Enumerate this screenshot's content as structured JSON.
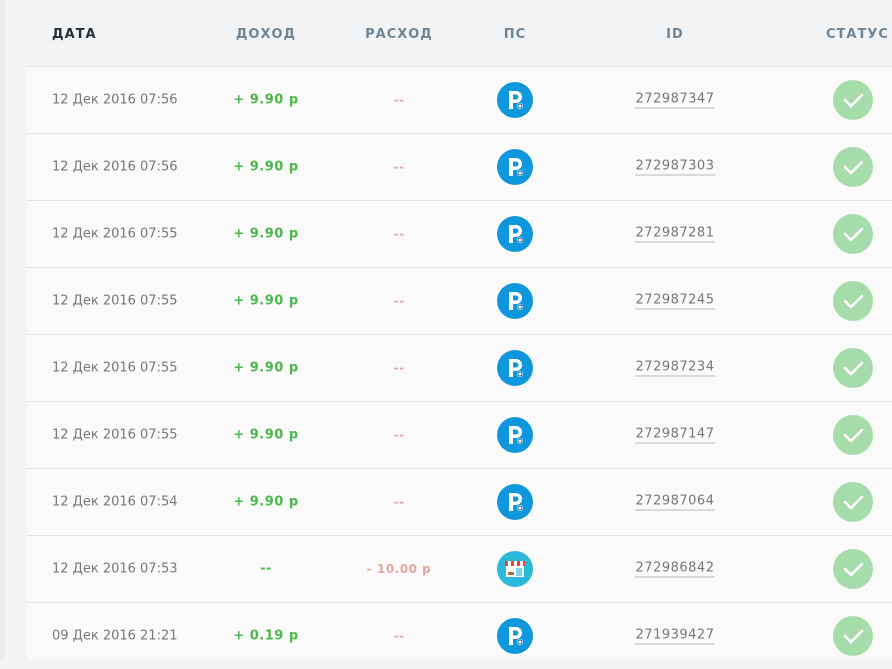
{
  "header": {
    "date": "ДАТА",
    "income": "ДОХОД",
    "expense": "РАСХОД",
    "ps": "ПС",
    "id": "ID",
    "status": "СТАТУС"
  },
  "colors": {
    "income": "#4cb84c",
    "expense": "#e3a99d",
    "ps_blue": "#0f97dd",
    "status_ok": "#a6dca9"
  },
  "rows": [
    {
      "date": "12 Дек 2016 07:56",
      "income": "+ 9.90 р",
      "expense": "--",
      "ps": "p-icon",
      "id": "272987347",
      "status": "check-icon"
    },
    {
      "date": "12 Дек 2016 07:56",
      "income": "+ 9.90 р",
      "expense": "--",
      "ps": "p-icon",
      "id": "272987303",
      "status": "check-icon"
    },
    {
      "date": "12 Дек 2016 07:55",
      "income": "+ 9.90 р",
      "expense": "--",
      "ps": "p-icon",
      "id": "272987281",
      "status": "check-icon"
    },
    {
      "date": "12 Дек 2016 07:55",
      "income": "+ 9.90 р",
      "expense": "--",
      "ps": "p-icon",
      "id": "272987245",
      "status": "check-icon"
    },
    {
      "date": "12 Дек 2016 07:55",
      "income": "+ 9.90 р",
      "expense": "--",
      "ps": "p-icon",
      "id": "272987234",
      "status": "check-icon"
    },
    {
      "date": "12 Дек 2016 07:55",
      "income": "+ 9.90 р",
      "expense": "--",
      "ps": "p-icon",
      "id": "272987147",
      "status": "check-icon"
    },
    {
      "date": "12 Дек 2016 07:54",
      "income": "+ 9.90 р",
      "expense": "--",
      "ps": "p-icon",
      "id": "272987064",
      "status": "check-icon"
    },
    {
      "date": "12 Дек 2016 07:53",
      "income": "--",
      "expense": "- 10.00 р",
      "ps": "shop-icon",
      "id": "272986842",
      "status": "check-icon"
    },
    {
      "date": "09 Дек 2016 21:21",
      "income": "+ 0.19 р",
      "expense": "--",
      "ps": "p-icon",
      "id": "271939427",
      "status": "check-icon"
    }
  ]
}
